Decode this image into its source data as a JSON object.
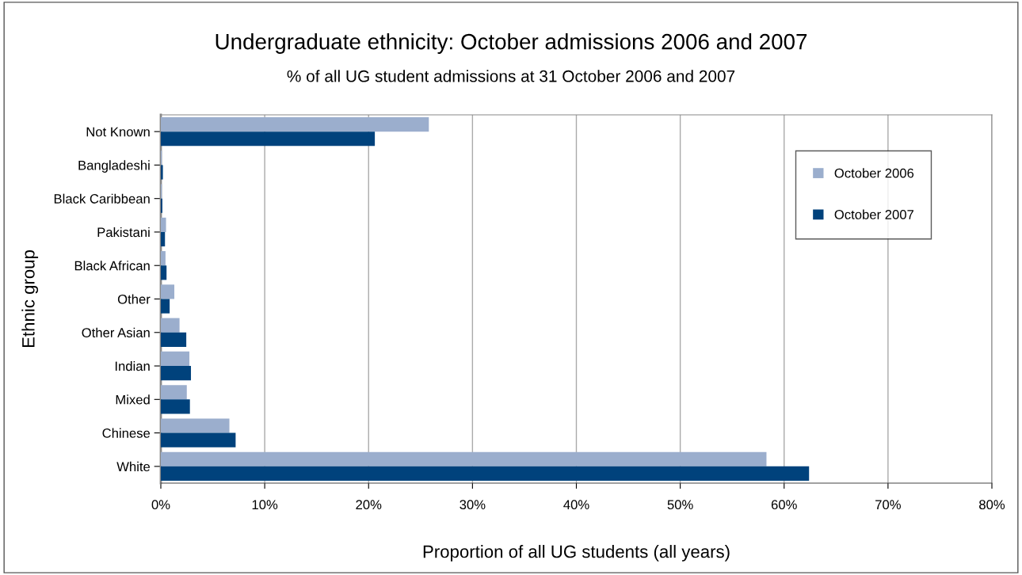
{
  "chart_data": {
    "type": "bar",
    "orientation": "horizontal",
    "title": "Undergraduate ethnicity: October admissions 2006 and 2007",
    "subtitle": "% of all UG student admissions at 31 October 2006 and 2007",
    "xlabel": "Proportion of all UG students (all years)",
    "ylabel": "Ethnic group",
    "categories": [
      "Not Known",
      "Bangladeshi",
      "Black Caribbean",
      "Pakistani",
      "Black African",
      "Other",
      "Other Asian",
      "Indian",
      "Mixed",
      "Chinese",
      "White"
    ],
    "series": [
      {
        "name": "October 2006",
        "color": "#9baecd",
        "values": [
          25.8,
          0.1,
          0.1,
          0.5,
          0.45,
          1.3,
          1.8,
          2.75,
          2.5,
          6.6,
          58.3
        ]
      },
      {
        "name": "October 2007",
        "color": "#00427c",
        "values": [
          20.6,
          0.2,
          0.15,
          0.4,
          0.55,
          0.85,
          2.45,
          2.9,
          2.8,
          7.2,
          62.4
        ]
      }
    ],
    "xlim": [
      0,
      80
    ],
    "xticks": [
      {
        "value": 0,
        "label": "0%"
      },
      {
        "value": 10,
        "label": "10%"
      },
      {
        "value": 20,
        "label": "20%"
      },
      {
        "value": 30,
        "label": "30%"
      },
      {
        "value": 40,
        "label": "40%"
      },
      {
        "value": 50,
        "label": "50%"
      },
      {
        "value": 60,
        "label": "60%"
      },
      {
        "value": 70,
        "label": "70%"
      },
      {
        "value": 80,
        "label": "80%"
      }
    ],
    "grid": "x",
    "legend": "top right"
  }
}
